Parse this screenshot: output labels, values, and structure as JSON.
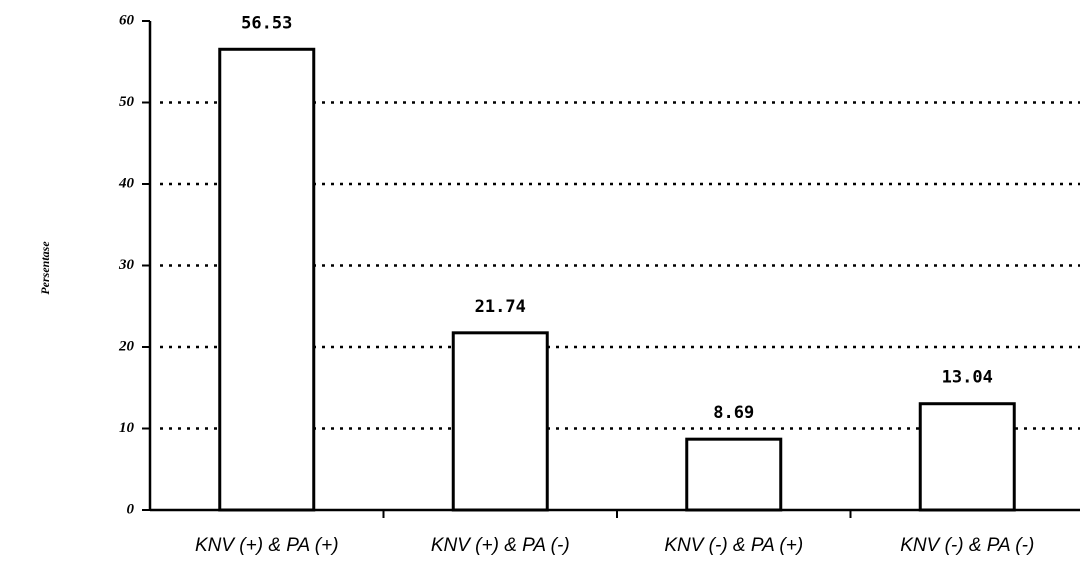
{
  "chart_data": {
    "type": "bar",
    "ylabel": "Persentase",
    "categories": [
      "KNV (+) & PA (+)",
      "KNV (+) & PA (-)",
      "KNV (-) & PA (+)",
      "KNV (-) & PA (-)"
    ],
    "values": [
      56.53,
      21.74,
      8.69,
      13.04
    ],
    "color": "#ffffff",
    "ylim": [
      0,
      60
    ],
    "yticks": [
      0,
      10,
      20,
      30,
      40,
      50,
      60
    ],
    "grid": true
  }
}
